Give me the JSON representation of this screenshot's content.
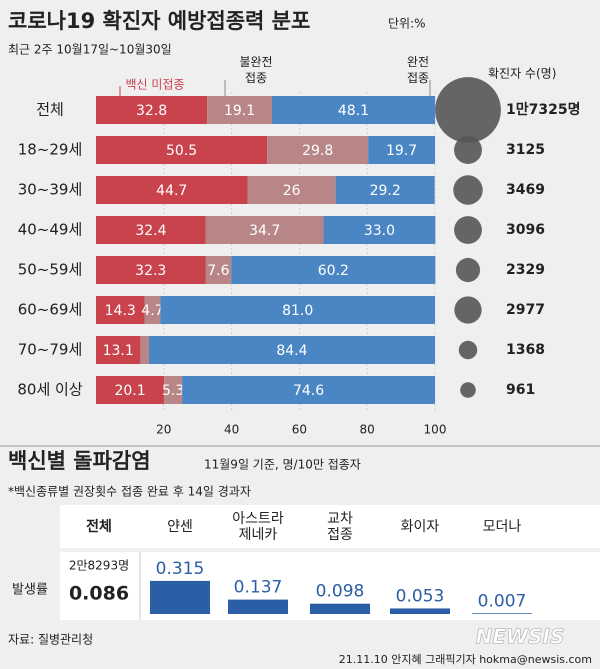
{
  "chart_data": [
    {
      "type": "stacked-bar-horizontal",
      "title": "코로나19 확진자 예방접종력 분포",
      "unit": "단위:%",
      "subtitle": "최근 2주 10월17일~10월30일",
      "categories": [
        "전체",
        "18~29세",
        "30~39세",
        "40~49세",
        "50~59세",
        "60~69세",
        "70~79세",
        "80세 이상"
      ],
      "series": [
        {
          "name": "백신 미접종",
          "color": "#c9434d",
          "values": [
            32.8,
            50.5,
            44.7,
            32.4,
            32.3,
            14.3,
            13.1,
            20.1
          ],
          "value_labels": [
            "32.8",
            "50.5",
            "44.7",
            "32.4",
            "32.3",
            "14.3",
            "13.1",
            "20.1"
          ]
        },
        {
          "name": "불완전\n접종",
          "color": "#b98688",
          "values": [
            19.1,
            29.8,
            26,
            34.7,
            7.6,
            4.7,
            2.5,
            5.3
          ],
          "value_labels": [
            "19.1",
            "29.8",
            "26",
            "34.7",
            "7.6",
            "4.7",
            null,
            "5.3"
          ]
        },
        {
          "name": "완전\n접종",
          "color": "#4b86c4",
          "values": [
            48.1,
            19.7,
            29.2,
            33.0,
            60.2,
            81.0,
            84.4,
            74.6
          ],
          "value_labels": [
            "48.1",
            "19.7",
            "29.2",
            "33.0",
            "60.2",
            "81.0",
            "84.4",
            "74.6"
          ]
        }
      ],
      "counts": {
        "name": "확진자 수(명)",
        "color": "#555555",
        "values": [
          17325,
          3125,
          3469,
          3096,
          2329,
          2977,
          1368,
          961
        ],
        "value_labels": [
          "1만7325명",
          "3125",
          "3469",
          "3096",
          "2329",
          "2977",
          "1368",
          "961"
        ]
      },
      "xlim": [
        0,
        100
      ],
      "xticks": [
        20,
        40,
        60,
        80,
        100
      ],
      "grid": true
    },
    {
      "type": "bar",
      "title": "백신별 돌파감염",
      "subtitle": "11월9일 기준, 명/10만 접종자",
      "note": "*백신종류별 권장횟수 접종 완료 후 14일 경과자",
      "categories": [
        "전체",
        "얀센",
        "아스트라\n제네카",
        "교차\n접종",
        "화이자",
        "모더나"
      ],
      "row_label": "발생률",
      "total_count_label": "2만8293명",
      "values": [
        0.086,
        0.315,
        0.137,
        0.098,
        0.053,
        0.007
      ],
      "color": "#2a5ea6"
    }
  ],
  "source": "자료: 질병관리청",
  "credit": "21.11.10 안지혜 그래픽기자 hokma@newsis.com",
  "logo": "NEWSIS"
}
